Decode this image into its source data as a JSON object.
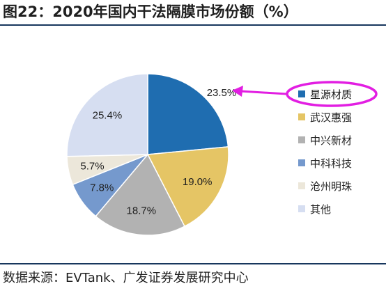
{
  "title": "图22：2020年国内干法隔膜市场份额（%）",
  "source": "数据来源：EVTank、广发证券发展研究中心",
  "chart_data": {
    "type": "pie",
    "categories": [
      "星源材质",
      "武汉惠强",
      "中兴新材",
      "中科科技",
      "沧州明珠",
      "其他"
    ],
    "values": [
      23.5,
      19.0,
      18.7,
      7.8,
      5.7,
      25.4
    ],
    "labels": [
      "23.5%",
      "19.0%",
      "18.7%",
      "7.8%",
      "5.7%",
      "25.4%"
    ],
    "colors": [
      "#1f6db0",
      "#e5c565",
      "#b2b2b2",
      "#7599cd",
      "#ece7da",
      "#d6def1"
    ],
    "legend_position": "right",
    "highlight": {
      "category": "星源材质",
      "shape": "ellipse",
      "color": "#e21ee2"
    }
  }
}
